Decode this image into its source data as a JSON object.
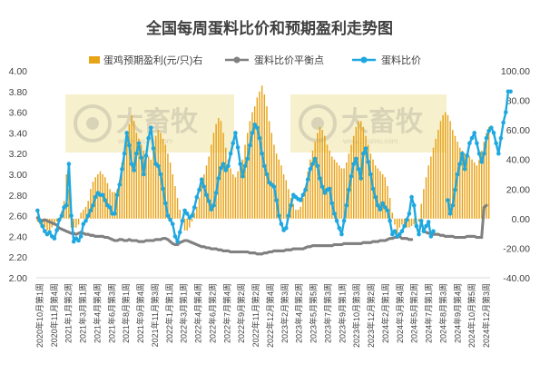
{
  "colors": {
    "profit_bar": "#E8A317",
    "breakeven_line": "#808080",
    "price_ratio_line": "#1FA8E0",
    "watermark": "#F7F0CC"
  },
  "watermarks": [
    {
      "text": "大畜牧",
      "sub": "www.dxumu.com"
    },
    {
      "text": "大畜牧",
      "sub": "www.dxumu.com"
    }
  ],
  "chart_data": {
    "type": "bar+line",
    "title": "全国每周蛋料比价和预期盈利走势图",
    "legend_position": "top-center",
    "grid": false,
    "left_axis": {
      "min": 2.0,
      "max": 4.0,
      "step": 0.2,
      "ticks": [
        "2.00",
        "2.20",
        "2.40",
        "2.60",
        "2.80",
        "3.00",
        "3.20",
        "3.40",
        "3.60",
        "3.80",
        "4.00"
      ]
    },
    "right_axis": {
      "min": -40,
      "max": 100,
      "step": 20,
      "ticks": [
        "-40.00",
        "-20.00",
        "0.00",
        "20.00",
        "40.00",
        "60.00",
        "80.00",
        "100.00"
      ]
    },
    "x_tick_labels": [
      "2020年10月第1周",
      "2020年11月第4周",
      "2021年1月第2周",
      "2021年3月第1周",
      "2021年4月第4周",
      "2021年6月第3周",
      "2021年8月第1周",
      "2021年9月第4周",
      "2021年11月第3周",
      "2022年1月第1周",
      "2022年3月第1周",
      "2022年4月第4周",
      "2022年6月第2周",
      "2022年7月第4周",
      "2022年9月第2周",
      "2022年11月第2周",
      "2022年12月第4周",
      "2023年2月第3周",
      "2023年4月第2周",
      "2023年5月第5周",
      "2023年7月第3周",
      "2023年9月第1周",
      "2023年10月第3周",
      "2023年12月第2周",
      "2024年2月第1周",
      "2024年3月第4周",
      "2024年5月第2周",
      "2024年7月第1周",
      "2024年8月第3周",
      "2024年9月第4周",
      "2024年10月第5周",
      "2024年12月第3周"
    ],
    "series": [
      {
        "name": "蛋鸡预期盈利(元/只)右",
        "type": "bar",
        "axis": "right",
        "values": [
          -2,
          -4,
          -5,
          -6,
          -8,
          -10,
          -6,
          -4,
          -2,
          0,
          5,
          12,
          30,
          20,
          -6,
          -6,
          -6,
          -4,
          4,
          6,
          8,
          12,
          20,
          25,
          28,
          30,
          32,
          30,
          28,
          24,
          20,
          18,
          18,
          20,
          26,
          38,
          45,
          55,
          64,
          70,
          66,
          58,
          54,
          50,
          46,
          44,
          42,
          40,
          46,
          56,
          60,
          58,
          54,
          50,
          44,
          38,
          30,
          22,
          14,
          6,
          -4,
          -8,
          -8,
          -6,
          -2,
          4,
          8,
          14,
          24,
          30,
          36,
          42,
          50,
          58,
          64,
          68,
          66,
          58,
          48,
          40,
          34,
          30,
          28,
          32,
          36,
          40,
          50,
          58,
          66,
          72,
          76,
          82,
          86,
          90,
          84,
          76,
          66,
          58,
          50,
          44,
          40,
          36,
          30,
          26,
          20,
          14,
          10,
          6,
          6,
          8,
          14,
          22,
          32,
          40,
          46,
          52,
          58,
          62,
          60,
          56,
          50,
          46,
          42,
          40,
          38,
          36,
          34,
          34,
          38,
          44,
          50,
          56,
          62,
          66,
          66,
          62,
          56,
          50,
          44,
          40,
          36,
          34,
          32,
          30,
          28,
          22,
          14,
          4,
          -4,
          -10,
          -6,
          -4,
          -4,
          -6,
          -6,
          -5,
          -4,
          0,
          -2,
          10,
          20,
          28,
          36,
          42,
          48,
          54,
          60,
          66,
          70,
          72,
          70,
          66,
          60,
          56,
          52,
          48,
          46,
          44,
          44,
          42,
          40,
          38,
          36,
          40,
          46,
          52,
          58,
          62
        ]
      },
      {
        "name": "蛋料比价平衡点",
        "type": "line",
        "axis": "left",
        "values": [
          2.58,
          2.56,
          2.55,
          2.56,
          2.55,
          2.54,
          2.53,
          2.52,
          2.51,
          2.48,
          2.47,
          2.46,
          2.45,
          2.44,
          2.43,
          2.43,
          2.42,
          2.43,
          2.44,
          2.43,
          2.42,
          2.42,
          2.41,
          2.41,
          2.4,
          2.4,
          2.4,
          2.4,
          2.39,
          2.39,
          2.38,
          2.37,
          2.36,
          2.36,
          2.37,
          2.37,
          2.36,
          2.36,
          2.37,
          2.36,
          2.36,
          2.36,
          2.35,
          2.35,
          2.35,
          2.36,
          2.36,
          2.36,
          2.36,
          2.37,
          2.37,
          2.37,
          2.38,
          2.38,
          2.37,
          2.35,
          2.33,
          2.32,
          2.32,
          2.34,
          2.35,
          2.36,
          2.36,
          2.35,
          2.34,
          2.33,
          2.32,
          2.31,
          2.3,
          2.3,
          2.29,
          2.29,
          2.28,
          2.28,
          2.28,
          2.27,
          2.27,
          2.26,
          2.26,
          2.26,
          2.25,
          2.25,
          2.25,
          2.25,
          2.25,
          2.25,
          2.25,
          2.25,
          2.24,
          2.24,
          2.24,
          2.23,
          2.23,
          2.23,
          2.24,
          2.24,
          2.25,
          2.25,
          2.26,
          2.26,
          2.26,
          2.26,
          2.26,
          2.27,
          2.27,
          2.27,
          2.28,
          2.28,
          2.28,
          2.28,
          2.28,
          2.29,
          2.3,
          2.3,
          2.31,
          2.31,
          2.31,
          2.31,
          2.31,
          2.31,
          2.31,
          2.31,
          2.31,
          2.32,
          2.32,
          2.32,
          2.32,
          2.33,
          2.33,
          2.33,
          2.33,
          2.33,
          2.33,
          2.33,
          2.33,
          2.34,
          2.34,
          2.34,
          2.34,
          2.35,
          2.35,
          2.35,
          2.36,
          2.36,
          2.36,
          2.37,
          2.38,
          2.38,
          2.39,
          2.39,
          2.4,
          2.38,
          2.38,
          2.38,
          2.37,
          2.37,
          null,
          null,
          null,
          null,
          null,
          2.44,
          2.43,
          2.43,
          2.42,
          2.42,
          2.42,
          2.41,
          2.41,
          2.4,
          2.4,
          2.4,
          2.4,
          2.39,
          2.39,
          2.39,
          2.39,
          2.39,
          2.4,
          2.4,
          2.4,
          2.4,
          2.39,
          2.39,
          2.39,
          2.68,
          2.7
        ]
      },
      {
        "name": "蛋料比价",
        "type": "line",
        "axis": "left",
        "values": [
          2.65,
          2.55,
          2.5,
          2.45,
          2.42,
          2.44,
          2.4,
          2.38,
          2.46,
          2.56,
          2.6,
          2.68,
          2.7,
          3.1,
          2.6,
          2.35,
          2.38,
          2.36,
          2.4,
          2.52,
          2.55,
          2.6,
          2.65,
          2.7,
          2.78,
          2.82,
          2.8,
          2.8,
          2.75,
          2.7,
          2.68,
          2.62,
          2.62,
          2.8,
          2.9,
          3.05,
          3.2,
          3.4,
          3.28,
          3.1,
          3.04,
          3.2,
          3.3,
          3.16,
          3.0,
          3.18,
          3.35,
          3.45,
          3.25,
          3.1,
          3.08,
          3.0,
          2.86,
          2.72,
          2.6,
          2.56,
          2.52,
          2.4,
          2.35,
          2.44,
          2.55,
          2.65,
          2.62,
          2.58,
          2.6,
          2.68,
          2.78,
          2.85,
          2.95,
          2.88,
          2.8,
          2.74,
          2.66,
          2.7,
          2.82,
          2.96,
          3.06,
          3.1,
          3.04,
          3.08,
          3.2,
          3.3,
          3.4,
          3.26,
          3.1,
          2.98,
          3.08,
          3.15,
          3.28,
          3.4,
          3.48,
          3.45,
          3.35,
          3.2,
          3.08,
          3.0,
          2.92,
          2.9,
          2.88,
          2.75,
          2.6,
          2.52,
          2.46,
          2.48,
          2.6,
          2.7,
          2.8,
          2.78,
          2.76,
          2.75,
          2.8,
          2.85,
          2.95,
          3.05,
          3.1,
          3.15,
          3.08,
          2.96,
          2.88,
          2.82,
          2.85,
          2.86,
          2.72,
          2.62,
          2.55,
          2.48,
          2.42,
          2.55,
          2.7,
          2.85,
          2.98,
          3.1,
          3.15,
          3.05,
          2.96,
          3.2,
          3.25,
          3.12,
          3.0,
          2.86,
          2.78,
          2.7,
          2.66,
          2.72,
          2.68,
          2.65,
          2.55,
          2.42,
          2.45,
          2.4,
          2.42,
          2.45,
          2.5,
          2.56,
          2.62,
          2.78,
          2.7,
          2.5,
          2.42,
          2.55,
          2.45,
          2.5,
          2.54,
          2.4,
          2.45,
          null,
          null,
          null,
          null,
          null,
          2.75,
          2.62,
          2.7,
          2.85,
          3.0,
          3.1,
          3.2,
          3.05,
          3.18,
          3.3,
          3.35,
          3.4,
          3.3,
          3.2,
          3.12,
          3.2,
          3.35,
          3.42,
          3.45,
          3.4,
          3.3,
          3.2,
          3.35,
          3.5,
          3.6,
          3.8,
          3.8
        ]
      }
    ]
  }
}
